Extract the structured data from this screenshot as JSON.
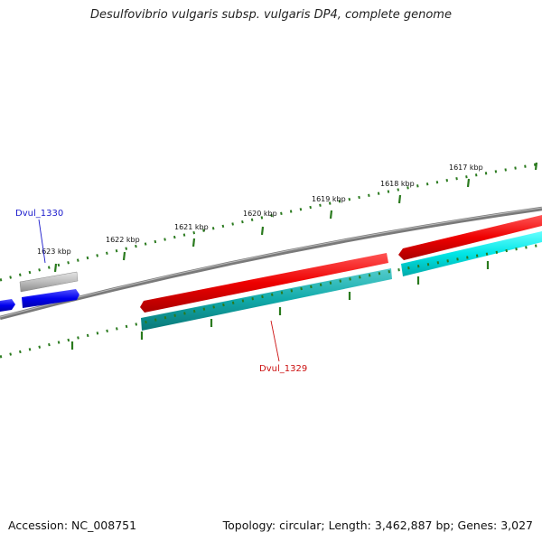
{
  "title": "Desulfovibrio vulgaris subsp. vulgaris DP4, complete genome",
  "footer": {
    "accession": "Accession: NC_008751",
    "summary": "Topology: circular; Length: 3,462,887 bp; Genes: 3,027"
  },
  "ruler": {
    "tick_labels": [
      "1617 kbp",
      "1618 kbp",
      "1619 kbp",
      "1620 kbp",
      "1621 kbp",
      "1622 kbp",
      "1623 kbp"
    ],
    "tick_color": "#2a7a1e"
  },
  "genes": [
    {
      "label": "Dvul_1330",
      "color": "#1a1acc"
    },
    {
      "label": "Dvul_1329",
      "color": "#cc1111"
    }
  ],
  "colors": {
    "forward_cds": "#ee1111",
    "forward_cds_blue": "#1010dd",
    "reverse_cds": "#22cccc",
    "reverse_cds_dark": "#119999",
    "grey_feature": "#b0b0b0",
    "backbone": "#7a7a7a"
  }
}
